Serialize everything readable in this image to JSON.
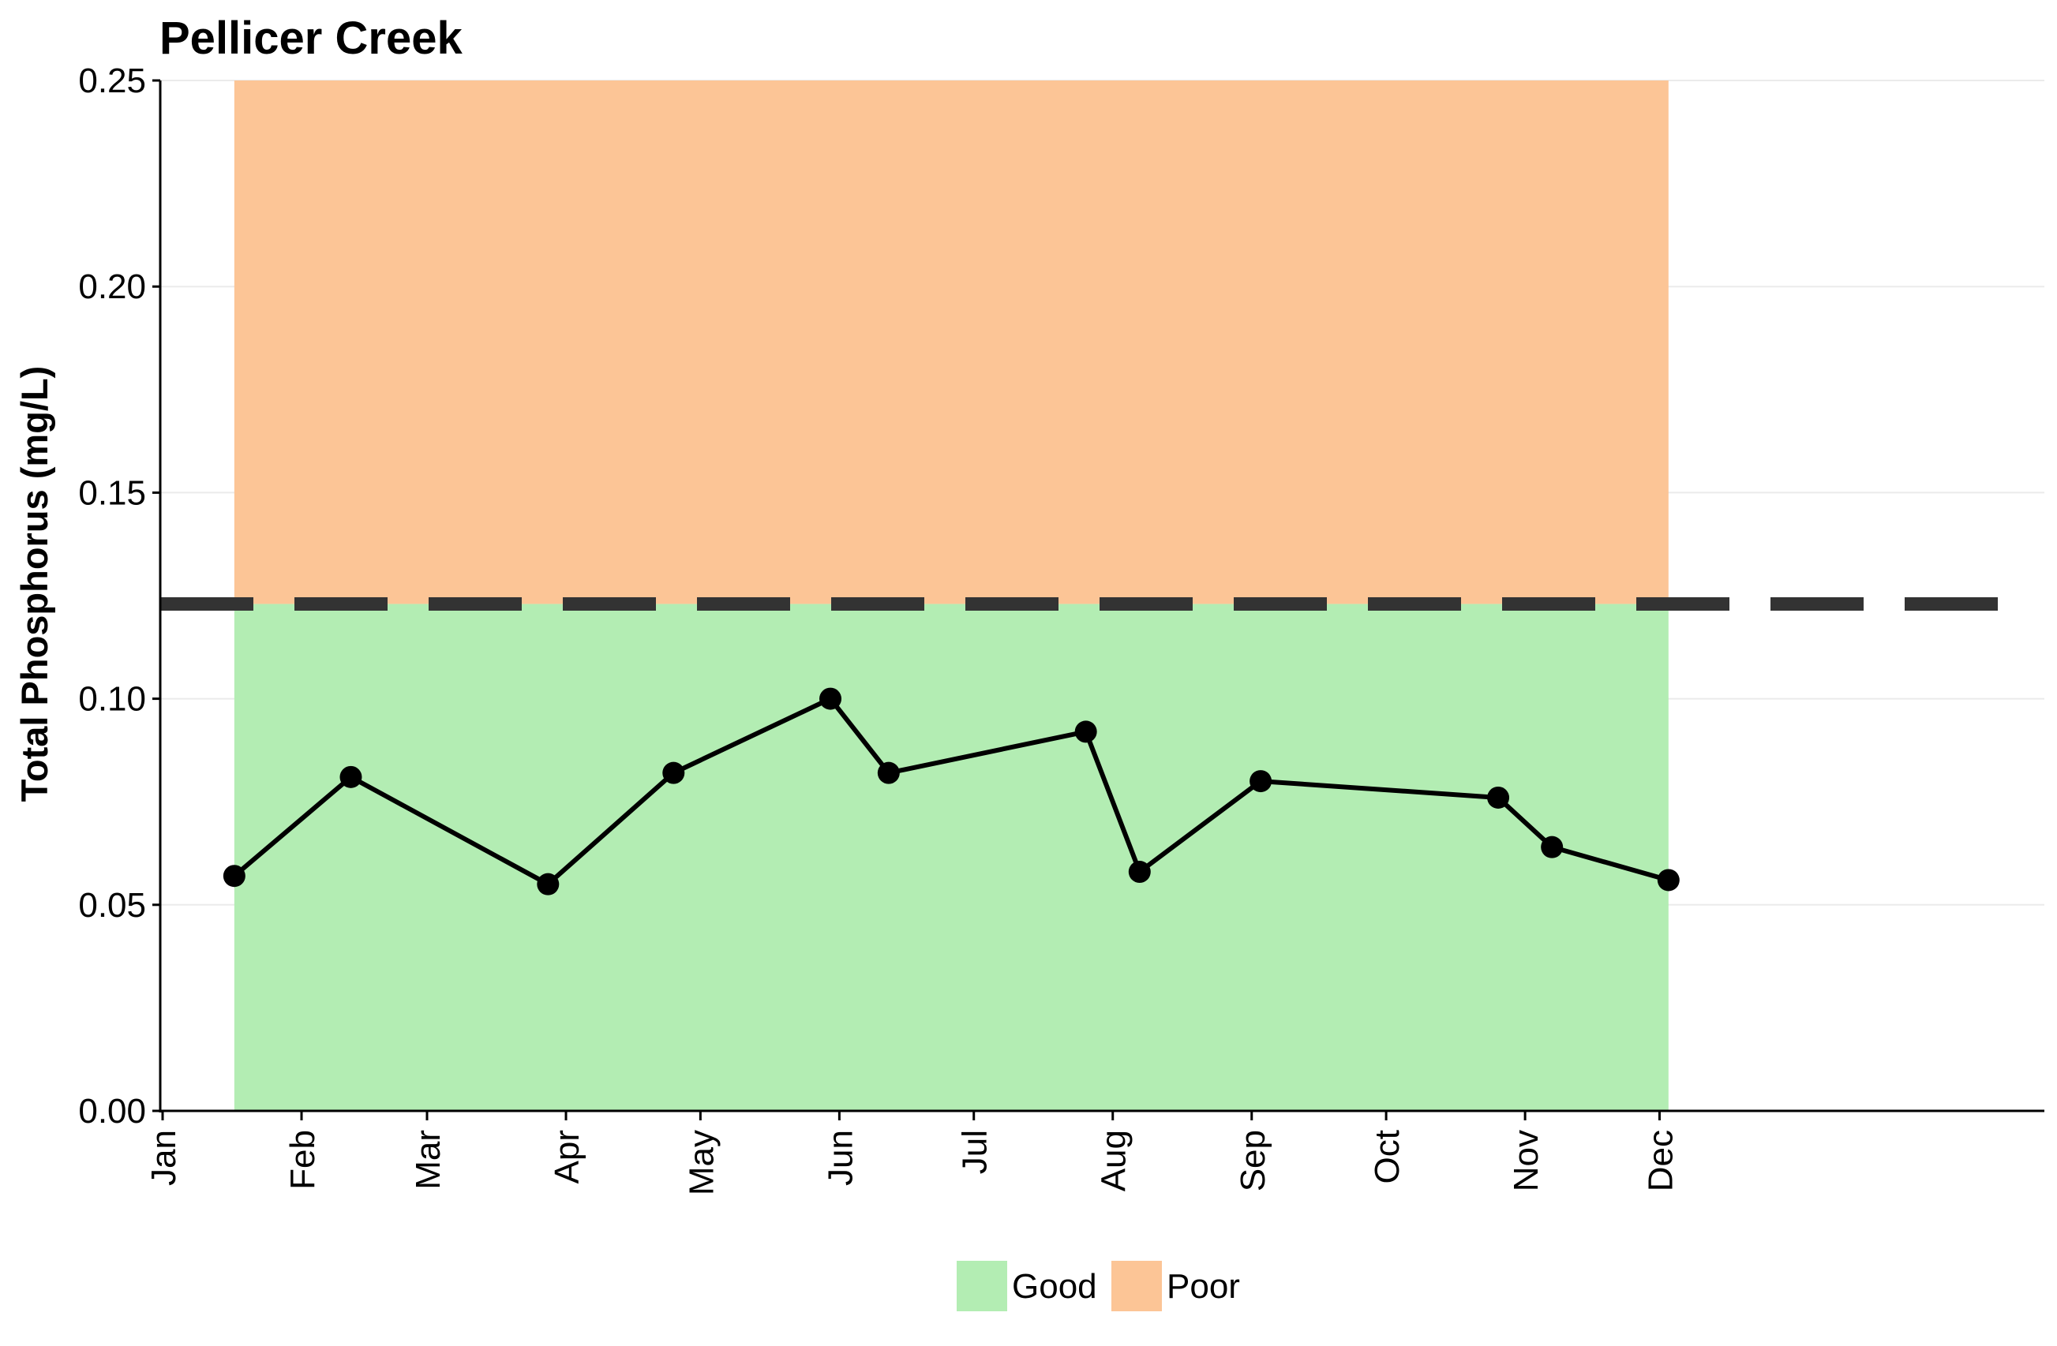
{
  "chart_data": {
    "type": "line",
    "title": "Pellicer Creek",
    "xlabel": "",
    "ylabel": "Total Phosphorus (mg/L)",
    "ylim": [
      0,
      0.25
    ],
    "y_ticks": [
      "0.00",
      "0.05",
      "0.10",
      "0.15",
      "0.20",
      "0.25"
    ],
    "x_axis": "date (month ticks)",
    "x_tick_labels": [
      "Jan",
      "Feb",
      "Mar",
      "Apr",
      "May",
      "Jun",
      "Jul",
      "Aug",
      "Sep",
      "Oct",
      "Nov",
      "Dec"
    ],
    "threshold": 0.123,
    "bands": [
      {
        "name": "Good",
        "from": 0,
        "to": 0.123,
        "color": "#b3edb3"
      },
      {
        "name": "Poor",
        "from": 0.123,
        "to": 0.25,
        "color": "#fcc596"
      }
    ],
    "band_x_range": [
      "Jan 17",
      "Dec 3"
    ],
    "series": [
      {
        "x": [
          "Jan 17",
          "Feb 12",
          "Mar 28",
          "Apr 25",
          "May 30",
          "Jun 12",
          "Jul 26",
          "Aug 7",
          "Sep 3",
          "Oct 26",
          "Nov 7",
          "Dec 3"
        ],
        "y": [
          0.057,
          0.081,
          0.055,
          0.082,
          0.1,
          0.082,
          0.092,
          0.058,
          0.08,
          0.076,
          0.064,
          0.056
        ]
      }
    ],
    "grid": "horizontal",
    "legend": "bottom"
  },
  "legend": {
    "good_label": "Good",
    "poor_label": "Poor",
    "good_color": "#b3edb3",
    "poor_color": "#fcc596"
  }
}
